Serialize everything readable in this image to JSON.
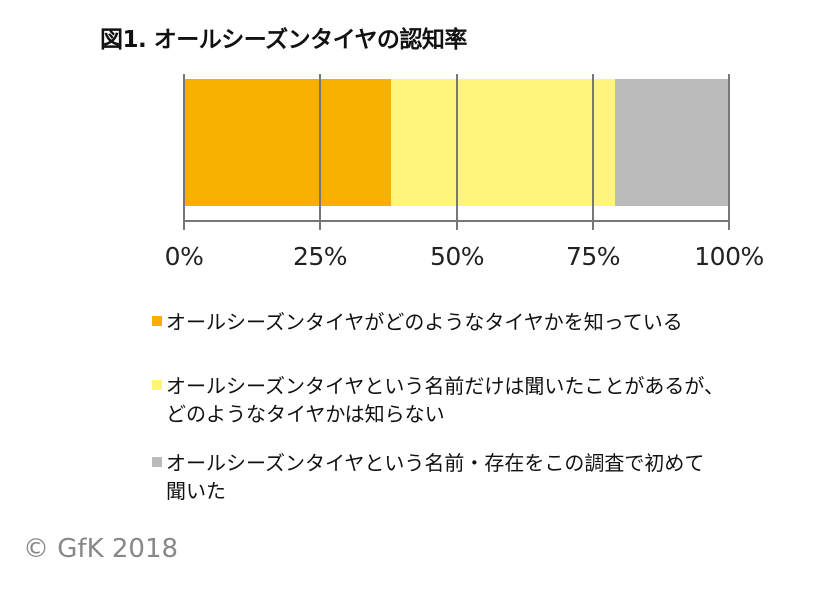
{
  "title": "図1. オールシーズンタイヤの認知率",
  "credit": "© GfK 2018",
  "colors": {
    "know_well": "#F7B000",
    "heard_name": "#FFF57D",
    "first_time": "#BBBBBB",
    "axis": "#777777"
  },
  "axis": {
    "ticks": [
      "0%",
      "25%",
      "50%",
      "75%",
      "100%"
    ]
  },
  "legend": [
    {
      "label": "オールシーズンタイヤがどのようなタイヤかを知っている",
      "color": "#F7B000"
    },
    {
      "label": "オールシーズンタイヤという名前だけは聞いたことがあるが、\nどのようなタイヤかは知らない",
      "color": "#FFF57D"
    },
    {
      "label": "オールシーズンタイヤという名前・存在をこの調査で初めて\n聞いた",
      "color": "#BBBBBB"
    }
  ],
  "chart_data": {
    "type": "bar",
    "orientation": "horizontal",
    "stacked": true,
    "title": "図1. オールシーズンタイヤの認知率",
    "categories": [
      "オールシーズンタイヤの認知率"
    ],
    "series": [
      {
        "name": "オールシーズンタイヤがどのようなタイヤかを知っている",
        "values": [
          38
        ],
        "color": "#F7B000"
      },
      {
        "name": "オールシーズンタイヤという名前だけは聞いたことがあるが、どのようなタイヤかは知らない",
        "values": [
          41
        ],
        "color": "#FFF57D"
      },
      {
        "name": "オールシーズンタイヤという名前・存在をこの調査で初めて聞いた",
        "values": [
          21
        ],
        "color": "#BBBBBB"
      }
    ],
    "xlabel": "",
    "ylabel": "",
    "xlim": [
      0,
      100
    ],
    "xticks": [
      "0%",
      "25%",
      "50%",
      "75%",
      "100%"
    ],
    "grid": true,
    "legend_position": "bottom",
    "source": "© GfK 2018"
  }
}
